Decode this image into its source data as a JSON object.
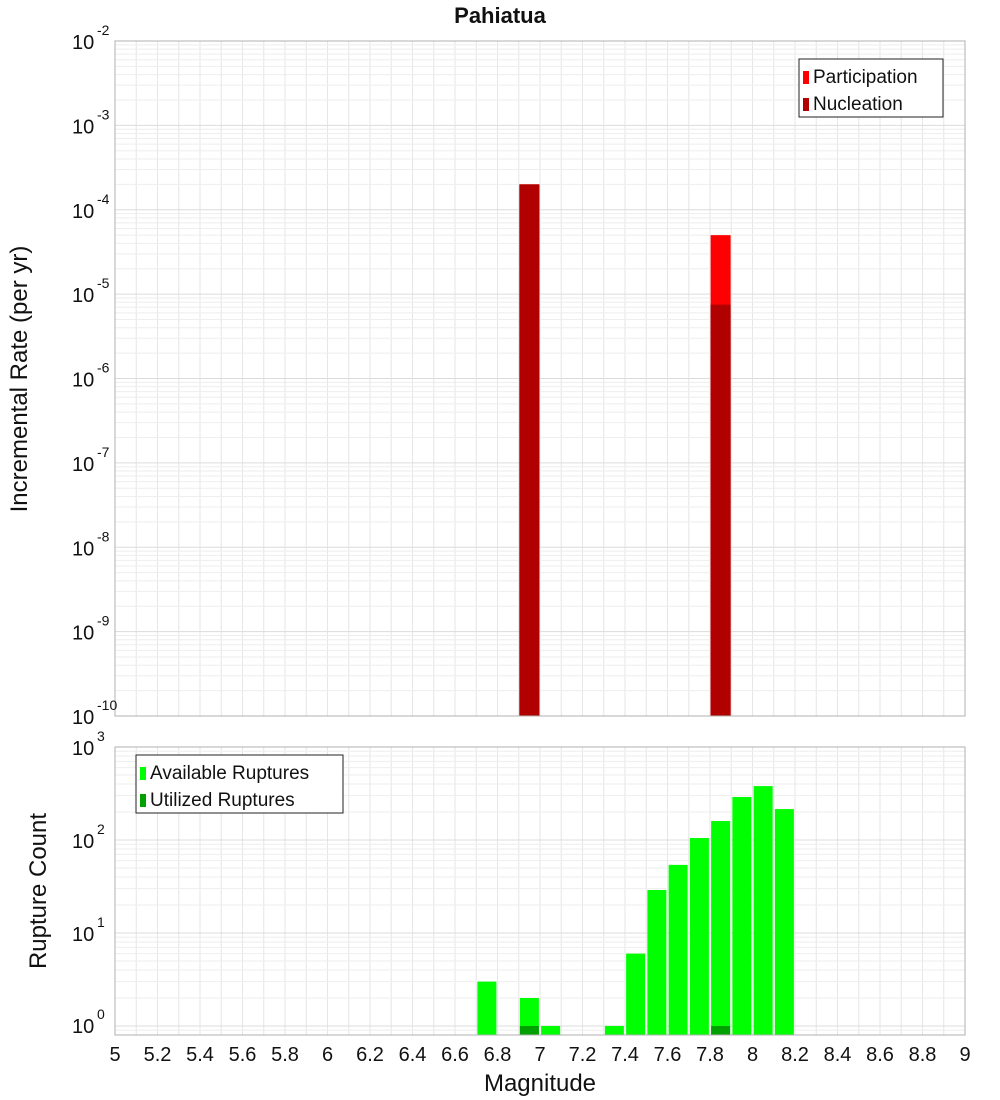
{
  "title": "Pahiatua",
  "colors": {
    "participation": "#ff0000",
    "nucleation": "#b00000",
    "available": "#00ff00",
    "utilized": "#00a000",
    "grid": "#e6e6e6",
    "frame": "#b0b0b0"
  },
  "chart_data": [
    {
      "type": "bar",
      "ylabel": "Incremental Rate (per yr)",
      "yscale": "log",
      "ylim": [
        1e-10,
        0.01
      ],
      "xlim": [
        5,
        9
      ],
      "grid": true,
      "legend": {
        "position": "top-right",
        "entries": [
          "Participation",
          "Nucleation"
        ]
      },
      "series": [
        {
          "name": "Participation",
          "x": [
            6.95,
            7.85
          ],
          "values": [
            0.0002,
            5e-05
          ]
        },
        {
          "name": "Nucleation",
          "x": [
            6.95,
            7.85
          ],
          "values": [
            0.0002,
            7.5e-06
          ]
        }
      ]
    },
    {
      "type": "bar",
      "xlabel": "Magnitude",
      "ylabel": "Rupture Count",
      "yscale": "log",
      "ylim": [
        0.8,
        1000
      ],
      "xlim": [
        5,
        9
      ],
      "grid": true,
      "legend": {
        "position": "top-left",
        "entries": [
          "Available Ruptures",
          "Utilized Ruptures"
        ]
      },
      "series": [
        {
          "name": "Available Ruptures",
          "x": [
            6.75,
            6.95,
            7.05,
            7.35,
            7.45,
            7.55,
            7.65,
            7.75,
            7.85,
            7.95,
            8.05,
            8.15
          ],
          "values": [
            3,
            2,
            1,
            1,
            6,
            29,
            54,
            105,
            160,
            290,
            380,
            215
          ]
        },
        {
          "name": "Utilized Ruptures",
          "x": [
            6.95,
            7.85
          ],
          "values": [
            1,
            1
          ]
        }
      ]
    }
  ],
  "x_ticks": [
    "5",
    "5.2",
    "5.4",
    "5.6",
    "5.8",
    "6",
    "6.2",
    "6.4",
    "6.6",
    "6.8",
    "7",
    "7.2",
    "7.4",
    "7.6",
    "7.8",
    "8",
    "8.2",
    "8.4",
    "8.6",
    "8.8",
    "9"
  ],
  "top_y_exponents": [
    "-2",
    "-3",
    "-4",
    "-5",
    "-6",
    "-7",
    "-8",
    "-9",
    "-10"
  ],
  "bottom_y_exponents": [
    "3",
    "2",
    "1",
    "0"
  ],
  "tick_base": "10"
}
